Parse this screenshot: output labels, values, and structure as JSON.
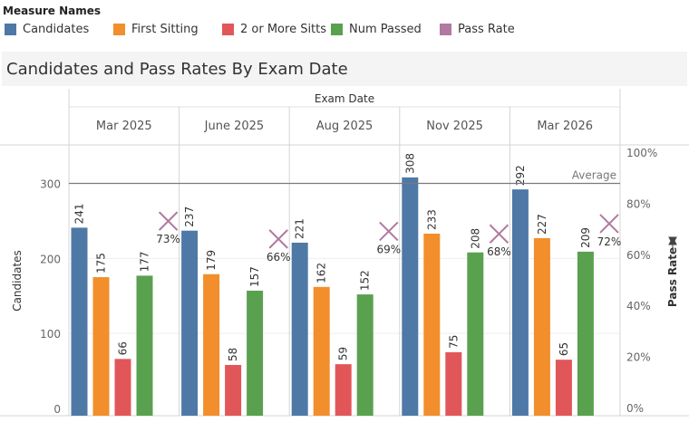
{
  "legend": {
    "title": "Measure Names",
    "items": [
      {
        "label": "Candidates",
        "color": "#4e79a7"
      },
      {
        "label": "First Sitting",
        "color": "#f28e2b"
      },
      {
        "label": "2 or More Sitts",
        "color": "#e15759"
      },
      {
        "label": "Num Passed",
        "color": "#59a14f"
      },
      {
        "label": "Pass Rate",
        "color": "#b07aa1"
      }
    ]
  },
  "chart_data": {
    "type": "bar",
    "title": "Candidates and Pass Rates By Exam Date",
    "column_header": "Exam Date",
    "categories": [
      "Mar 2025",
      "June 2025",
      "Aug 2025",
      "Nov 2025",
      "Mar 2026"
    ],
    "series": [
      {
        "name": "Candidates",
        "color": "#4e79a7",
        "values": [
          241,
          237,
          221,
          308,
          292
        ]
      },
      {
        "name": "First Sitting",
        "color": "#f28e2b",
        "values": [
          175,
          179,
          162,
          233,
          227
        ]
      },
      {
        "name": "2 or More Sitts",
        "color": "#e15759",
        "values": [
          66,
          58,
          59,
          75,
          65
        ]
      },
      {
        "name": "Num Passed",
        "color": "#59a14f",
        "values": [
          177,
          157,
          152,
          208,
          209
        ]
      }
    ],
    "pass_rate": {
      "name": "Pass Rate",
      "color": "#b07aa1",
      "values": [
        0.73,
        0.66,
        0.69,
        0.68,
        0.72
      ],
      "labels": [
        "73%",
        "66%",
        "69%",
        "68%",
        "72%"
      ]
    },
    "ylabel": "Candidates",
    "ylim": [
      0,
      360
    ],
    "yticks": [
      0,
      100,
      200,
      300
    ],
    "y2label": "Pass Rate",
    "y2lim": [
      0,
      1.0
    ],
    "y2ticks": [
      0,
      0.2,
      0.4,
      0.6,
      0.8,
      1.0
    ],
    "y2tick_labels": [
      "0%",
      "20%",
      "40%",
      "60%",
      "80%",
      "100%"
    ],
    "reference_line": {
      "label": "Average",
      "value": 300
    }
  }
}
